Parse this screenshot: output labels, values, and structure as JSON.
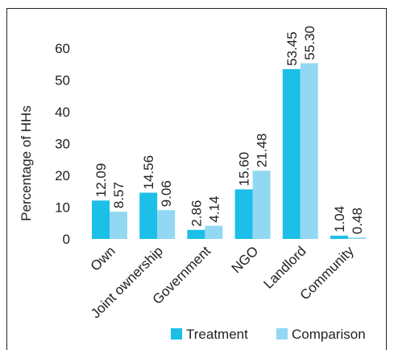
{
  "chart_data": {
    "type": "bar",
    "title": "",
    "xlabel": "",
    "ylabel": "Percentage of HHs",
    "ylim": [
      0,
      60
    ],
    "yticks": [
      0,
      10,
      20,
      30,
      40,
      50,
      60
    ],
    "categories": [
      "Own",
      "Joint ownership",
      "Government",
      "NGO",
      "Landlord",
      "Community"
    ],
    "series": [
      {
        "name": "Treatment",
        "color": "#1cbfe8",
        "values": [
          12.09,
          14.56,
          2.86,
          15.6,
          53.45,
          1.04
        ],
        "labels": [
          "12.09",
          "14.56",
          "2.86",
          "15.60",
          "53.45",
          "1.04"
        ]
      },
      {
        "name": "Comparison",
        "color": "#93d8f2",
        "values": [
          8.57,
          9.06,
          4.14,
          21.48,
          55.3,
          0.48
        ],
        "labels": [
          "8.57",
          "9.06",
          "4.14",
          "21.48",
          "55.30",
          "0.48"
        ]
      }
    ],
    "grid": false,
    "legend_position": "bottom-right",
    "border_color": "#222222"
  }
}
